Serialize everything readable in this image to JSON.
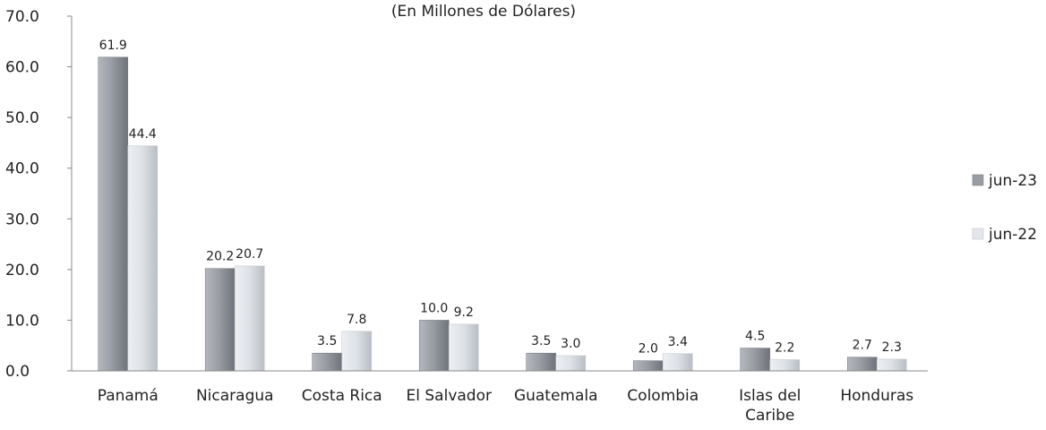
{
  "chart_data": {
    "type": "bar",
    "title": "(En Millones de Dólares)",
    "categories": [
      [
        "Panamá"
      ],
      [
        "Nicaragua"
      ],
      [
        "Costa Rica"
      ],
      [
        "El Salvador"
      ],
      [
        "Guatemala"
      ],
      [
        "Colombia"
      ],
      [
        "Islas del",
        "Caribe"
      ],
      [
        "Honduras"
      ]
    ],
    "series": [
      {
        "name": "jun-23",
        "values": [
          61.9,
          20.2,
          3.5,
          10.0,
          3.5,
          2.0,
          4.5,
          2.7
        ],
        "labels": [
          "61.9",
          "20.2",
          "3.5",
          "10.0",
          "3.5",
          "2.0",
          "4.5",
          "2.7"
        ],
        "color": "#8f929a"
      },
      {
        "name": "jun-22",
        "values": [
          44.4,
          20.7,
          7.8,
          9.2,
          3.0,
          3.4,
          2.2,
          2.3
        ],
        "labels": [
          "44.4",
          "20.7",
          "7.8",
          "9.2",
          "3.0",
          "3.4",
          "2.2",
          "2.3"
        ],
        "color": "#d6dadf"
      }
    ],
    "yticks": [
      "0.0",
      "10.0",
      "20.0",
      "30.0",
      "40.0",
      "50.0",
      "60.0",
      "70.0"
    ],
    "ylim": [
      0,
      70
    ],
    "legend": "right",
    "grid": false
  }
}
